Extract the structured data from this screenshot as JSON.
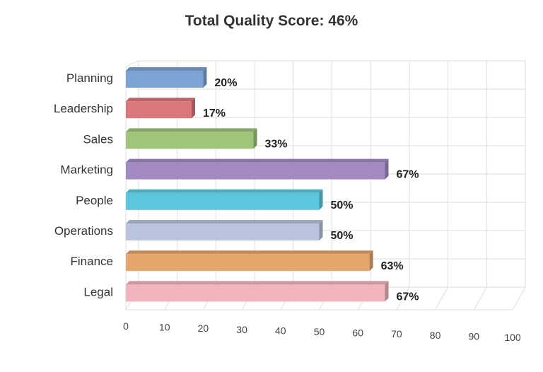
{
  "chart_data": {
    "type": "bar",
    "orientation": "horizontal",
    "title": "Total Quality Score: 46%",
    "categories": [
      "Planning",
      "Leadership",
      "Sales",
      "Marketing",
      "People",
      "Operations",
      "Finance",
      "Legal"
    ],
    "values": [
      20,
      17,
      33,
      67,
      50,
      50,
      63,
      67
    ],
    "data_labels": [
      "20%",
      "17%",
      "33%",
      "67%",
      "50%",
      "50%",
      "63%",
      "67%"
    ],
    "colors": [
      "#7ba3d4",
      "#d9777d",
      "#9fc47a",
      "#a48ac2",
      "#5cc6dc",
      "#b9c4dc",
      "#e5a66b",
      "#f0b4bd"
    ],
    "xlim": [
      0,
      100
    ],
    "xticks": [
      "0",
      "10",
      "20",
      "30",
      "40",
      "50",
      "60",
      "70",
      "80",
      "90",
      "100"
    ],
    "xlabel": "",
    "ylabel": "",
    "grid": true,
    "legend": "none"
  }
}
